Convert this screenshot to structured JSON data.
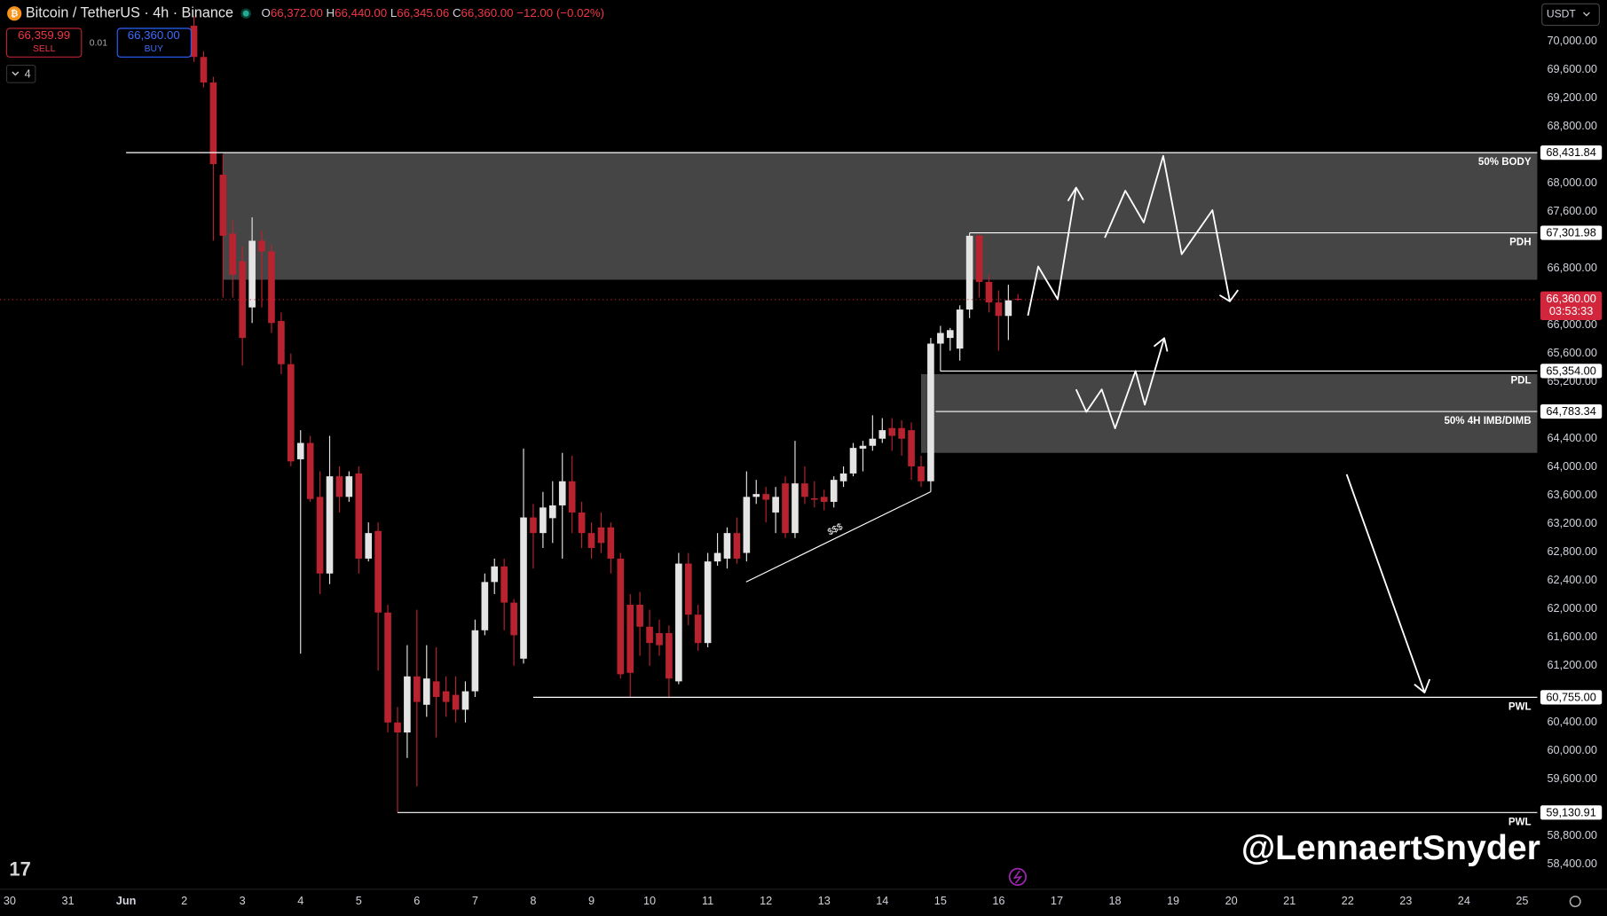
{
  "header": {
    "symbol": "Bitcoin / TetherUS · 4h · Binance",
    "ohlc": [
      {
        "k": "O",
        "v": "66,372.00"
      },
      {
        "k": "H",
        "v": "66,440.00"
      },
      {
        "k": "L",
        "v": "66,345.06"
      },
      {
        "k": "C",
        "v": "66,360.00"
      }
    ],
    "change": "−12.00 (−0.02%)",
    "sell_price": "66,359.99",
    "sell": "SELL",
    "spread": "0.01",
    "buy_price": "66,360.00",
    "buy": "BUY",
    "indicators": "4",
    "currency": "USDT"
  },
  "watermark": "@LennaertSnyder",
  "chart_data": {
    "type": "candlestick",
    "up_color": "#e4e4e4",
    "down_color": "#b8232f",
    "level_color": "#ffffff",
    "zone_color": "rgba(255,255,255,0.27)",
    "xlim": [
      -1.167,
      25.26
    ],
    "ylim": [
      58080,
      70580
    ],
    "xticks": [
      {
        "value": -1,
        "label": "30"
      },
      {
        "value": 0,
        "label": "31"
      },
      {
        "value": 1,
        "label": "Jun"
      },
      2,
      3,
      4,
      5,
      6,
      7,
      8,
      9,
      10,
      11,
      12,
      13,
      14,
      15,
      16,
      17,
      18,
      19,
      20,
      21,
      22,
      23,
      24,
      25
    ],
    "yticks": [
      {
        "value": 70000,
        "label": "70,000.00"
      },
      {
        "value": 69600,
        "label": "69,600.00"
      },
      {
        "value": 69200,
        "label": "69,200.00"
      },
      {
        "value": 68800,
        "label": "68,800.00"
      },
      {
        "value": 68000,
        "label": "68,000.00"
      },
      {
        "value": 67600,
        "label": "67,600.00"
      },
      {
        "value": 66800,
        "label": "66,800.00"
      },
      {
        "value": 66000,
        "label": "66,000.00"
      },
      {
        "value": 65600,
        "label": "65,600.00"
      },
      {
        "value": 65200,
        "label": "65,200.00"
      },
      {
        "value": 64400,
        "label": "64,400.00"
      },
      {
        "value": 64000,
        "label": "64,000.00"
      },
      {
        "value": 63600,
        "label": "63,600.00"
      },
      {
        "value": 63200,
        "label": "63,200.00"
      },
      {
        "value": 62800,
        "label": "62,800.00"
      },
      {
        "value": 62400,
        "label": "62,400.00"
      },
      {
        "value": 62000,
        "label": "62,000.00"
      },
      {
        "value": 61600,
        "label": "61,600.00"
      },
      {
        "value": 61200,
        "label": "61,200.00"
      },
      {
        "value": 60400,
        "label": "60,400.00"
      },
      {
        "value": 60000,
        "label": "60,000.00"
      },
      {
        "value": 59600,
        "label": "59,600.00"
      },
      {
        "value": 58800,
        "label": "58,800.00"
      },
      {
        "value": 58400,
        "label": "58,400.00"
      }
    ],
    "x": [
      2.167,
      2.333,
      2.5,
      2.667,
      2.833,
      3,
      3.167,
      3.333,
      3.5,
      3.667,
      3.833,
      4,
      4.167,
      4.333,
      4.5,
      4.667,
      4.833,
      5,
      5.167,
      5.333,
      5.5,
      5.667,
      5.833,
      6,
      6.167,
      6.333,
      6.5,
      6.667,
      6.833,
      7,
      7.167,
      7.333,
      7.5,
      7.667,
      7.833,
      8,
      8.167,
      8.333,
      8.5,
      8.667,
      8.833,
      9,
      9.167,
      9.333,
      9.5,
      9.667,
      9.833,
      10,
      10.167,
      10.333,
      10.5,
      10.667,
      10.833,
      11,
      11.167,
      11.333,
      11.5,
      11.667,
      11.833,
      12,
      12.167,
      12.333,
      12.5,
      12.667,
      12.833,
      13,
      13.167,
      13.333,
      13.5,
      13.667,
      13.833,
      14,
      14.167,
      14.333,
      14.5,
      14.667,
      14.833,
      15,
      15.167,
      15.333,
      15.5,
      15.667,
      15.833,
      16,
      16.167,
      16.333
    ],
    "open": [
      70220,
      69780,
      69420,
      68120,
      67290,
      66900,
      66250,
      67190,
      67040,
      66060,
      65450,
      64110,
      64340,
      63580,
      62500,
      63870,
      63580,
      63910,
      62710,
      63100,
      61950,
      60400,
      60260,
      61050,
      60650,
      60980,
      60840,
      60790,
      60580,
      60840,
      61700,
      62380,
      62600,
      62090,
      61300,
      63290,
      63070,
      63280,
      63460,
      63800,
      63360,
      63070,
      63150,
      63150,
      62710,
      62060,
      62060,
      61750,
      61660,
      61660,
      60980,
      62640,
      61920,
      61520,
      62670,
      62710,
      63070,
      62790,
      63580,
      63620,
      63360,
      63770,
      63070,
      63770,
      63560,
      63580,
      63510,
      63800,
      63910,
      64260,
      64300,
      64400,
      64550,
      64550,
      64520,
      64010,
      63800,
      65740,
      65820,
      65670,
      66220,
      67260,
      66610,
      66320,
      66130,
      66372
    ],
    "high": [
      70360,
      69860,
      69500,
      68410,
      67480,
      67110,
      67520,
      67330,
      67140,
      66180,
      65600,
      64520,
      64440,
      63940,
      64440,
      64010,
      63940,
      64010,
      63220,
      63220,
      62060,
      60620,
      61490,
      61990,
      61490,
      61460,
      61050,
      61050,
      60980,
      61850,
      62500,
      62710,
      62710,
      62140,
      64260,
      63480,
      63650,
      63800,
      64200,
      64160,
      63510,
      63220,
      63360,
      63220,
      62790,
      62210,
      62240,
      61990,
      61850,
      61770,
      62790,
      62790,
      62060,
      62790,
      63070,
      63150,
      63290,
      63940,
      63820,
      63720,
      63720,
      63870,
      64370,
      64010,
      63800,
      63680,
      63870,
      64010,
      64340,
      64370,
      64730,
      64690,
      64690,
      64660,
      64630,
      64160,
      65820,
      65990,
      65960,
      66280,
      67300,
      67290,
      66710,
      66490,
      66570,
      66440
    ],
    "low": [
      69710,
      69350,
      67190,
      66390,
      66390,
      65430,
      66030,
      66250,
      65890,
      65310,
      64010,
      61370,
      63510,
      62210,
      62350,
      63360,
      63510,
      62500,
      62670,
      61130,
      60260,
      59130,
      59900,
      59500,
      60480,
      60190,
      60480,
      60400,
      60400,
      60760,
      61630,
      62210,
      61700,
      61200,
      61230,
      62570,
      62860,
      62930,
      62710,
      63070,
      62860,
      62710,
      62790,
      62500,
      61020,
      60760,
      61340,
      61200,
      61340,
      60740,
      60940,
      61770,
      61410,
      61460,
      62610,
      62570,
      62640,
      62670,
      63480,
      63220,
      63070,
      63000,
      63000,
      63480,
      63430,
      63390,
      63430,
      63720,
      63870,
      63940,
      64230,
      64340,
      64230,
      64160,
      63820,
      63720,
      63650,
      65350,
      65640,
      65500,
      66100,
      66390,
      66180,
      65640,
      65790,
      66345.06
    ],
    "close": [
      69780,
      69420,
      68270,
      67260,
      66710,
      65820,
      67190,
      67040,
      66030,
      65450,
      64080,
      64340,
      63550,
      62500,
      63870,
      63580,
      63870,
      62710,
      63070,
      61950,
      60400,
      60260,
      61050,
      60690,
      61020,
      60760,
      60690,
      60580,
      60840,
      61700,
      62380,
      62600,
      62090,
      61630,
      63290,
      63070,
      63430,
      63460,
      63800,
      63360,
      63070,
      62860,
      62930,
      62710,
      61080,
      61100,
      61750,
      61520,
      61490,
      61020,
      62640,
      61920,
      61520,
      62670,
      62790,
      63070,
      62710,
      63580,
      63620,
      63540,
      63580,
      63070,
      63770,
      63580,
      63540,
      63510,
      63820,
      63910,
      64270,
      64300,
      64400,
      64520,
      64440,
      64400,
      64010,
      63800,
      65740,
      65890,
      65930,
      66220,
      67260,
      66610,
      66320,
      66130,
      66350,
      66360
    ],
    "zones": [
      {
        "x_start": 2.667,
        "top": 68431.84,
        "bottom": 66640
      },
      {
        "x_start": 14.667,
        "top": 65310,
        "bottom": 64200
      }
    ],
    "levels": [
      {
        "name": "50% BODY",
        "value": 68431.84,
        "label": "68,431.84",
        "x_start": 1
      },
      {
        "name": "PDH",
        "value": 67301.98,
        "label": "67,301.98",
        "x_start": 15.5
      },
      {
        "name": "PDL",
        "value": 65354,
        "label": "65,354.00",
        "x_start": 15
      },
      {
        "name": "50% 4H IMB/DIMB",
        "value": 64783.34,
        "label": "64,783.34",
        "x_start": 14.917
      },
      {
        "name": "PWL",
        "value": 60755,
        "label": "60,755.00",
        "x_start": 8
      },
      {
        "name": "PWL",
        "value": 59130.91,
        "label": "59,130.91",
        "x_start": 5.667
      }
    ],
    "last": {
      "value": 66360,
      "label": "66,360.00",
      "countdown": "03:53:33",
      "color": "#d1263b"
    },
    "annotations": [
      "$$$"
    ]
  }
}
